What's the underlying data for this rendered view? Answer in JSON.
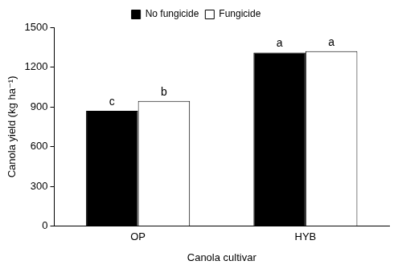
{
  "chart_data": {
    "type": "bar",
    "x_label": "Canola cultivar",
    "y_label": "Canola yield (kg ha⁻¹)",
    "categories": [
      "OP",
      "HYB"
    ],
    "series": [
      {
        "name": "No fungicide",
        "color": "#000000",
        "values": [
          870,
          1310
        ],
        "annotations": [
          "c",
          "a"
        ]
      },
      {
        "name": "Fungicide",
        "color": "#ffffff",
        "values": [
          945,
          1320
        ],
        "annotations": [
          "b",
          "a"
        ]
      }
    ],
    "ylim": [
      0,
      1500
    ],
    "yticks": [
      0,
      300,
      600,
      900,
      1200,
      1500
    ],
    "grid": false,
    "legend": "top"
  }
}
